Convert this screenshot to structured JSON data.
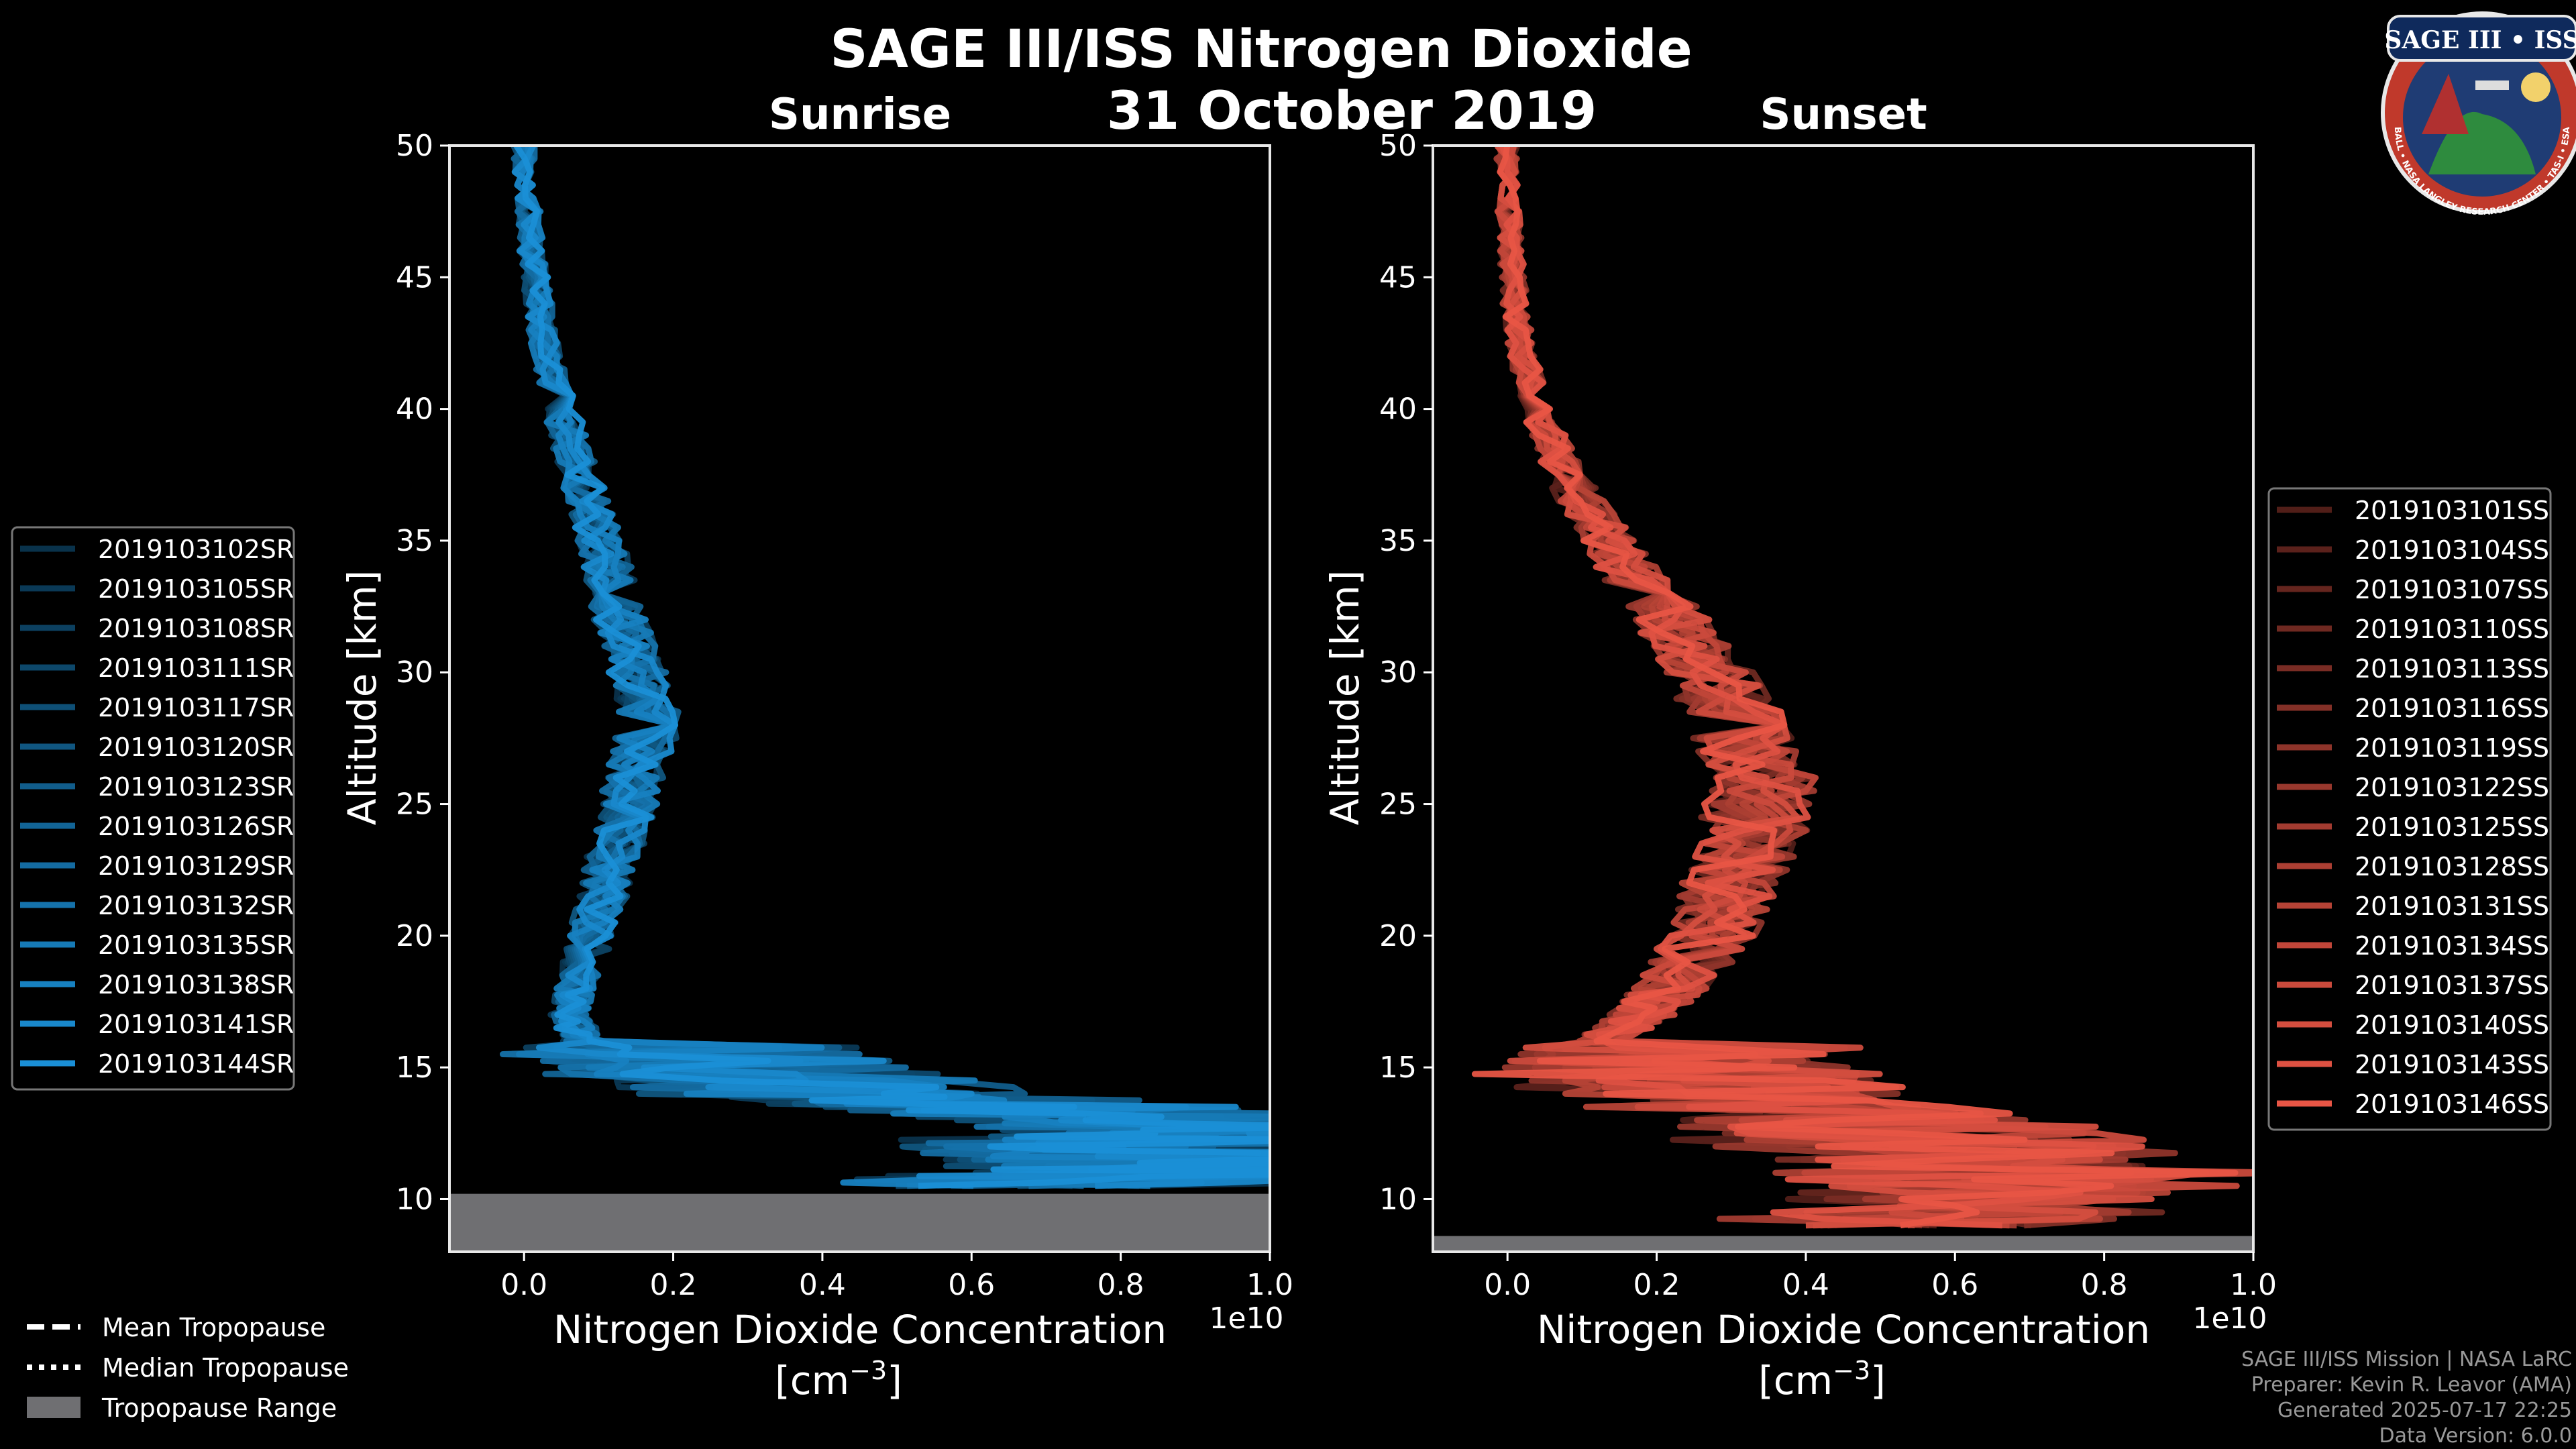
{
  "header": {
    "title": "SAGE III/ISS Nitrogen Dioxide",
    "date": "31 October 2019",
    "logo_text": "SAGE III • ISS",
    "logo_ring_text": "BALL • NASA LANGLEY RESEARCH CENTER • TAS-I • ESA"
  },
  "footer": {
    "line1": "SAGE III/ISS Mission | NASA LaRC",
    "line2": "Preparer: Kevin R. Leavor (AMA)",
    "line3": "Generated 2025-07-17 22:25",
    "line4": "Data Version: 6.0.0"
  },
  "tropo_legend": {
    "mean": "Mean Tropopause",
    "median": "Median Tropopause",
    "range": "Tropopause Range"
  },
  "colors": {
    "sunrise": "#1a8fd6",
    "sunset": "#e85545",
    "tropo": "#6f6f72"
  },
  "chart_data": [
    {
      "type": "line",
      "title": "Sunrise",
      "xlabel": "Nitrogen Dioxide Concentration",
      "xlabel_unit": "[cm",
      "xlabel_exp": "−3",
      "xlabel_close": "]",
      "ylabel": "Altitude [km]",
      "x_scale_label": "1e10",
      "xlim": [
        -0.1,
        1.0
      ],
      "ylim": [
        8,
        50
      ],
      "xticks": [
        0.0,
        0.2,
        0.4,
        0.6,
        0.8,
        1.0
      ],
      "xtick_labels": [
        "0.0",
        "0.2",
        "0.4",
        "0.6",
        "0.8",
        "1.0"
      ],
      "yticks": [
        10,
        15,
        20,
        25,
        30,
        35,
        40,
        45,
        50
      ],
      "ytick_labels": [
        "10",
        "15",
        "20",
        "25",
        "30",
        "35",
        "40",
        "45",
        "50"
      ],
      "tropopause_range": [
        8,
        10.2
      ],
      "altitudes": [
        50,
        48,
        46,
        44,
        42,
        40,
        38,
        36,
        34,
        32,
        30,
        28,
        26,
        24,
        22,
        20,
        18,
        17,
        16,
        15,
        14,
        13.5,
        13,
        12.5,
        12,
        11.5,
        11,
        10.5
      ],
      "mean_profile": [
        0.0,
        0.005,
        0.01,
        0.02,
        0.03,
        0.05,
        0.07,
        0.09,
        0.11,
        0.13,
        0.15,
        0.17,
        0.15,
        0.13,
        0.11,
        0.09,
        0.07,
        0.06,
        0.08,
        0.15,
        0.3,
        0.55,
        0.75,
        0.8,
        0.7,
        0.85,
        0.75,
        0.6
      ],
      "series": [
        {
          "name": "2019103102SR"
        },
        {
          "name": "2019103105SR"
        },
        {
          "name": "2019103108SR"
        },
        {
          "name": "2019103111SR"
        },
        {
          "name": "2019103117SR"
        },
        {
          "name": "2019103120SR"
        },
        {
          "name": "2019103123SR"
        },
        {
          "name": "2019103126SR"
        },
        {
          "name": "2019103129SR"
        },
        {
          "name": "2019103132SR"
        },
        {
          "name": "2019103135SR"
        },
        {
          "name": "2019103138SR"
        },
        {
          "name": "2019103141SR"
        },
        {
          "name": "2019103144SR"
        }
      ]
    },
    {
      "type": "line",
      "title": "Sunset",
      "xlabel": "Nitrogen Dioxide Concentration",
      "xlabel_unit": "[cm",
      "xlabel_exp": "−3",
      "xlabel_close": "]",
      "ylabel": "Altitude [km]",
      "x_scale_label": "1e10",
      "xlim": [
        -0.1,
        1.0
      ],
      "ylim": [
        8,
        50
      ],
      "xticks": [
        0.0,
        0.2,
        0.4,
        0.6,
        0.8,
        1.0
      ],
      "xtick_labels": [
        "0.0",
        "0.2",
        "0.4",
        "0.6",
        "0.8",
        "1.0"
      ],
      "yticks": [
        10,
        15,
        20,
        25,
        30,
        35,
        40,
        45,
        50
      ],
      "ytick_labels": [
        "10",
        "15",
        "20",
        "25",
        "30",
        "35",
        "40",
        "45",
        "50"
      ],
      "tropopause_range": [
        8,
        8.6
      ],
      "altitudes": [
        50,
        48,
        46,
        44,
        42,
        40,
        38,
        36,
        34,
        32,
        30,
        28,
        26,
        24,
        22,
        20,
        18,
        17,
        16,
        15,
        14,
        13,
        12,
        11,
        10,
        9
      ],
      "mean_profile": [
        0.0,
        0.0,
        0.005,
        0.01,
        0.02,
        0.04,
        0.07,
        0.11,
        0.16,
        0.22,
        0.27,
        0.31,
        0.34,
        0.33,
        0.3,
        0.27,
        0.22,
        0.18,
        0.13,
        0.1,
        0.2,
        0.35,
        0.5,
        0.6,
        0.55,
        0.45
      ],
      "series": [
        {
          "name": "2019103101SS"
        },
        {
          "name": "2019103104SS"
        },
        {
          "name": "2019103107SS"
        },
        {
          "name": "2019103110SS"
        },
        {
          "name": "2019103113SS"
        },
        {
          "name": "2019103116SS"
        },
        {
          "name": "2019103119SS"
        },
        {
          "name": "2019103122SS"
        },
        {
          "name": "2019103125SS"
        },
        {
          "name": "2019103128SS"
        },
        {
          "name": "2019103131SS"
        },
        {
          "name": "2019103134SS"
        },
        {
          "name": "2019103137SS"
        },
        {
          "name": "2019103140SS"
        },
        {
          "name": "2019103143SS"
        },
        {
          "name": "2019103146SS"
        }
      ]
    }
  ]
}
